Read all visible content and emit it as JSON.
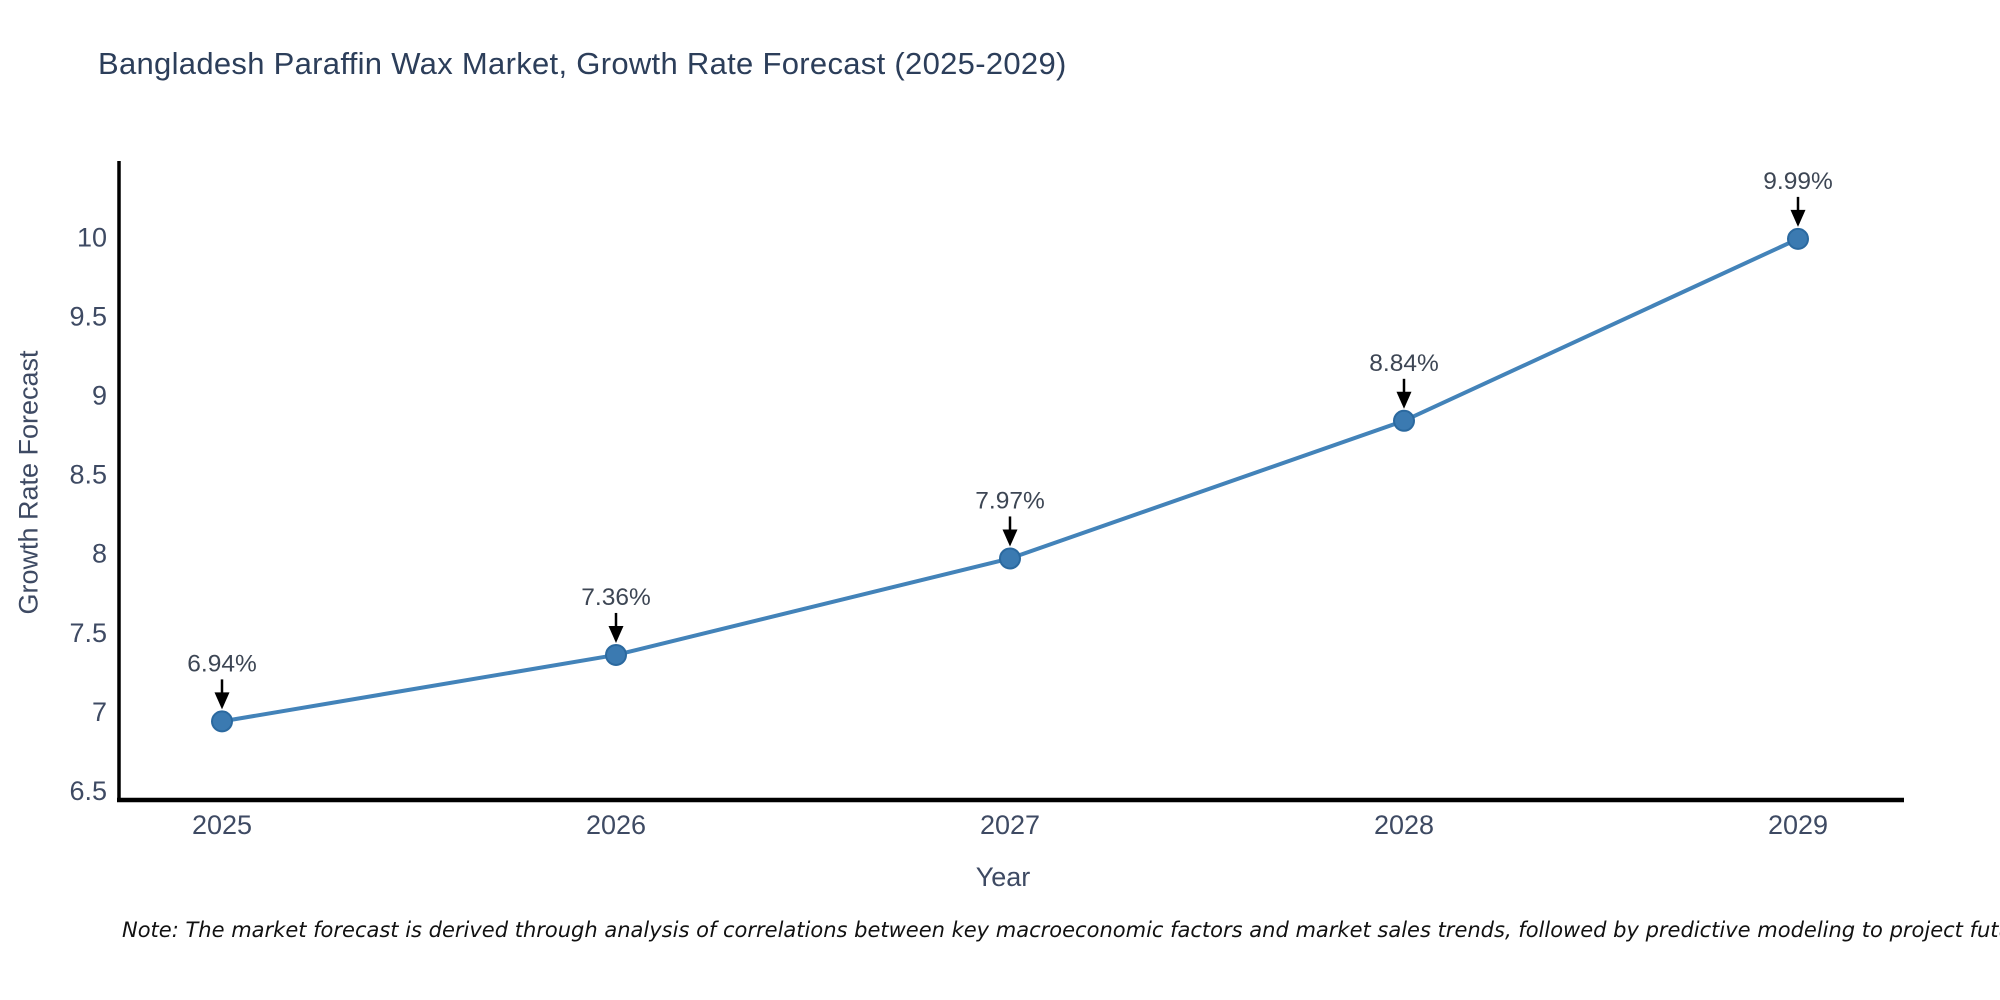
{
  "chart_data": {
    "type": "line",
    "title": "Bangladesh Paraffin Wax Market, Growth Rate Forecast (2025-2029)",
    "xlabel": "Year",
    "ylabel": "Growth Rate Forecast",
    "x": [
      2025,
      2026,
      2027,
      2028,
      2029
    ],
    "values": [
      6.94,
      7.36,
      7.97,
      8.84,
      9.99
    ],
    "point_labels": [
      "6.94%",
      "7.36%",
      "7.97%",
      "8.84%",
      "9.99%"
    ],
    "xtick_labels": [
      "2025",
      "2026",
      "2027",
      "2028",
      "2029"
    ],
    "ytick_values": [
      6.5,
      7,
      7.5,
      8,
      8.5,
      9,
      9.5,
      10
    ],
    "ytick_labels": [
      "6.5",
      "7",
      "7.5",
      "8",
      "8.5",
      "9",
      "9.5",
      "10"
    ],
    "ylim": [
      6.44,
      10.54
    ],
    "grid": false,
    "legend": "none",
    "annotation_style": "arrow-down-to-point",
    "colors": {
      "line": "#4383b9",
      "marker_fill": "#3b7ab1",
      "marker_edge": "#2b699f",
      "axis": "#000000",
      "tick_label": "#3e4a63",
      "annotation_text": "#3d4654",
      "annotation_arrow": "#000000",
      "title_text": "#2c3e5a",
      "background": "#ffffff"
    }
  },
  "note": "Note: The market forecast is derived through analysis of correlations between key macroeconomic factors and market sales trends, followed by predictive modeling to project future sales"
}
